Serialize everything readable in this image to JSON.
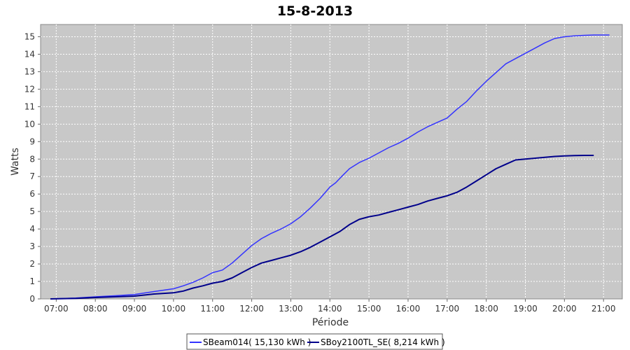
{
  "chart_data": {
    "type": "line",
    "title": "15-8-2013",
    "xlabel": "Période",
    "ylabel": "Watts",
    "x_unit": "hours",
    "xlim": [
      6.6,
      21.48
    ],
    "ylim": [
      0,
      15.7
    ],
    "x_ticks": [
      {
        "value": 7,
        "label": "07:00"
      },
      {
        "value": 8,
        "label": "08:00"
      },
      {
        "value": 9,
        "label": "09:00"
      },
      {
        "value": 10,
        "label": "10:00"
      },
      {
        "value": 11,
        "label": "11:00"
      },
      {
        "value": 12,
        "label": "12:00"
      },
      {
        "value": 13,
        "label": "13:00"
      },
      {
        "value": 14,
        "label": "14:00"
      },
      {
        "value": 15,
        "label": "15:00"
      },
      {
        "value": 16,
        "label": "16:00"
      },
      {
        "value": 17,
        "label": "17:00"
      },
      {
        "value": 18,
        "label": "18:00"
      },
      {
        "value": 19,
        "label": "19:00"
      },
      {
        "value": 20,
        "label": "20:00"
      },
      {
        "value": 21,
        "label": "21:00"
      }
    ],
    "y_ticks": [
      0,
      1,
      2,
      3,
      4,
      5,
      6,
      7,
      8,
      9,
      10,
      11,
      12,
      13,
      14,
      15
    ],
    "grid": true,
    "legend_position": "bottom",
    "plot_background": "#c8c8c8",
    "series": [
      {
        "name": "SBeam014( 15,130 kWh )",
        "color": "#3333ff",
        "x": [
          6.85,
          7.5,
          8.0,
          8.5,
          9.0,
          9.5,
          10.0,
          10.25,
          10.5,
          10.75,
          11.0,
          11.25,
          11.5,
          11.75,
          12.0,
          12.25,
          12.5,
          12.75,
          13.0,
          13.25,
          13.5,
          13.75,
          14.0,
          14.15,
          14.3,
          14.5,
          14.75,
          15.0,
          15.25,
          15.5,
          15.75,
          16.0,
          16.25,
          16.5,
          16.75,
          17.0,
          17.25,
          17.5,
          17.75,
          18.0,
          18.25,
          18.5,
          18.75,
          19.0,
          19.25,
          19.5,
          19.75,
          20.0,
          20.25,
          20.5,
          20.75,
          21.15
        ],
        "y": [
          0.0,
          0.05,
          0.12,
          0.18,
          0.25,
          0.42,
          0.58,
          0.75,
          0.95,
          1.2,
          1.5,
          1.65,
          2.05,
          2.55,
          3.05,
          3.45,
          3.75,
          4.0,
          4.3,
          4.7,
          5.2,
          5.75,
          6.4,
          6.65,
          7.0,
          7.45,
          7.8,
          8.05,
          8.35,
          8.65,
          8.9,
          9.2,
          9.55,
          9.85,
          10.1,
          10.35,
          10.85,
          11.3,
          11.9,
          12.45,
          12.95,
          13.45,
          13.75,
          14.05,
          14.35,
          14.65,
          14.9,
          15.0,
          15.05,
          15.08,
          15.1,
          15.1
        ]
      },
      {
        "name": "SBoy2100TL_SE( 8,214 kWh )",
        "color": "#00008b",
        "x": [
          6.85,
          7.5,
          8.0,
          8.5,
          9.0,
          9.5,
          10.0,
          10.25,
          10.5,
          10.75,
          11.0,
          11.25,
          11.5,
          11.75,
          12.0,
          12.25,
          12.5,
          12.75,
          13.0,
          13.25,
          13.5,
          13.75,
          14.0,
          14.25,
          14.5,
          14.75,
          15.0,
          15.25,
          15.5,
          15.75,
          16.0,
          16.25,
          16.5,
          16.75,
          17.0,
          17.25,
          17.5,
          17.75,
          18.0,
          18.25,
          18.5,
          18.75,
          19.0,
          19.25,
          19.5,
          19.75,
          20.0,
          20.25,
          20.5,
          20.75
        ],
        "y": [
          0.0,
          0.03,
          0.08,
          0.12,
          0.16,
          0.28,
          0.35,
          0.45,
          0.62,
          0.75,
          0.9,
          1.0,
          1.2,
          1.5,
          1.8,
          2.05,
          2.2,
          2.35,
          2.5,
          2.7,
          2.95,
          3.25,
          3.55,
          3.85,
          4.25,
          4.55,
          4.7,
          4.8,
          4.95,
          5.1,
          5.25,
          5.4,
          5.6,
          5.75,
          5.9,
          6.1,
          6.4,
          6.75,
          7.1,
          7.45,
          7.7,
          7.95,
          8.0,
          8.05,
          8.1,
          8.15,
          8.18,
          8.2,
          8.21,
          8.21
        ]
      }
    ]
  }
}
